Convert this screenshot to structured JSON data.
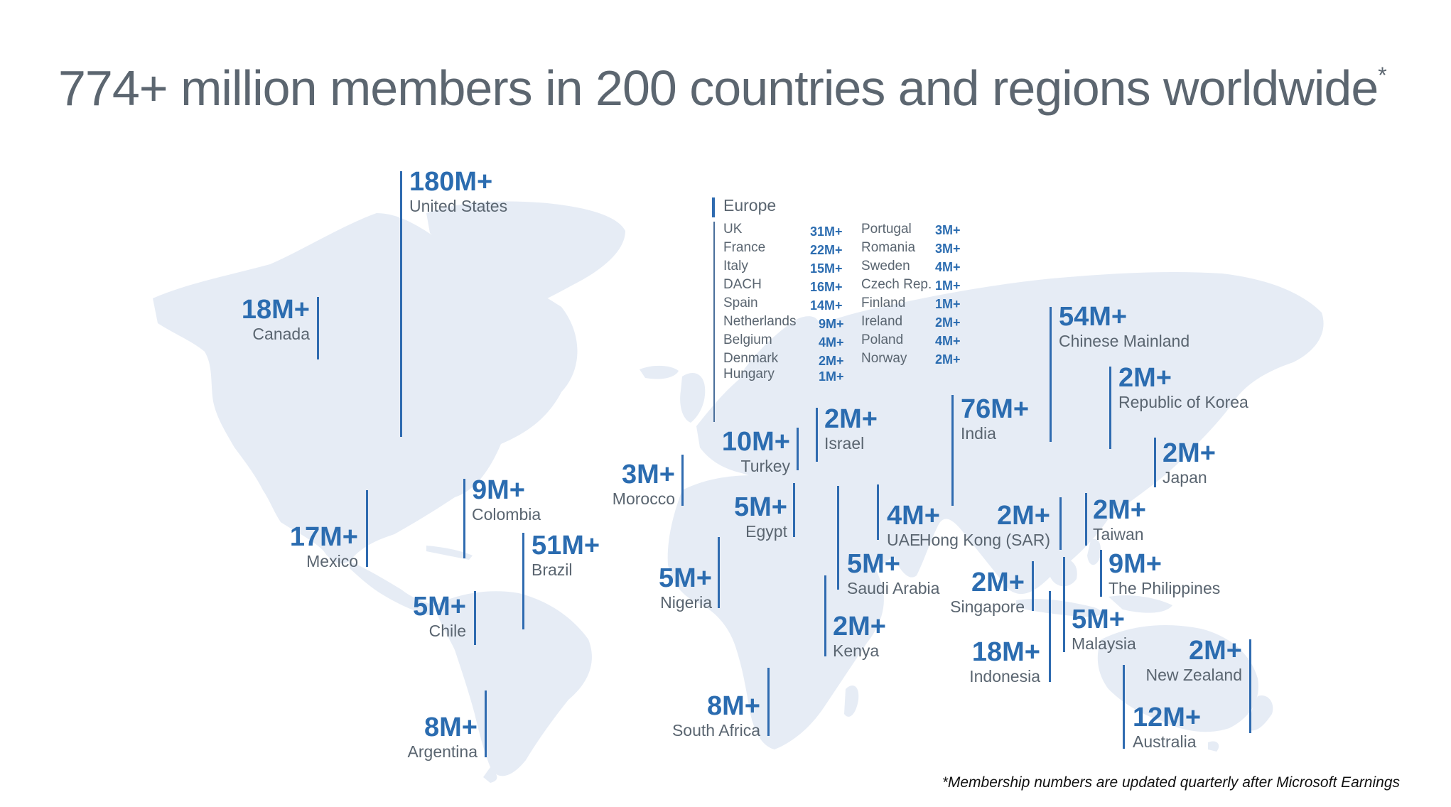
{
  "title": "774+ million members in 200 countries and regions worldwide",
  "title_mark": "*",
  "footnote": "*Membership numbers are updated quarterly after Microsoft Earnings",
  "colors": {
    "accent": "#2b6cb0",
    "land": "#e6ecf5",
    "label": "#5a6570",
    "title": "#5c6670"
  },
  "regions": {
    "united_states": {
      "value": "180M+",
      "label": "United States"
    },
    "canada": {
      "value": "18M+",
      "label": "Canada"
    },
    "mexico": {
      "value": "17M+",
      "label": "Mexico"
    },
    "colombia": {
      "value": "9M+",
      "label": "Colombia"
    },
    "brazil": {
      "value": "51M+",
      "label": "Brazil"
    },
    "chile": {
      "value": "5M+",
      "label": "Chile"
    },
    "argentina": {
      "value": "8M+",
      "label": "Argentina"
    },
    "morocco": {
      "value": "3M+",
      "label": "Morocco"
    },
    "turkey": {
      "value": "10M+",
      "label": "Turkey"
    },
    "israel": {
      "value": "2M+",
      "label": "Israel"
    },
    "egypt": {
      "value": "5M+",
      "label": "Egypt"
    },
    "nigeria": {
      "value": "5M+",
      "label": "Nigeria"
    },
    "saudi_arabia": {
      "value": "5M+",
      "label": "Saudi Arabia"
    },
    "uae": {
      "value": "4M+",
      "label": "UAE"
    },
    "kenya": {
      "value": "2M+",
      "label": "Kenya"
    },
    "south_africa": {
      "value": "8M+",
      "label": "South Africa"
    },
    "india": {
      "value": "76M+",
      "label": "India"
    },
    "chinese_mainland": {
      "value": "54M+",
      "label": "Chinese Mainland"
    },
    "korea": {
      "value": "2M+",
      "label": "Republic of Korea"
    },
    "japan": {
      "value": "2M+",
      "label": "Japan"
    },
    "hong_kong": {
      "value": "2M+",
      "label": "Hong Kong (SAR)"
    },
    "taiwan": {
      "value": "2M+",
      "label": "Taiwan"
    },
    "philippines": {
      "value": "9M+",
      "label": "The Philippines"
    },
    "singapore": {
      "value": "2M+",
      "label": "Singapore"
    },
    "malaysia": {
      "value": "5M+",
      "label": "Malaysia"
    },
    "indonesia": {
      "value": "18M+",
      "label": "Indonesia"
    },
    "new_zealand": {
      "value": "2M+",
      "label": "New Zealand"
    },
    "australia": {
      "value": "12M+",
      "label": "Australia"
    }
  },
  "europe": {
    "title": "Europe",
    "left": [
      {
        "name": "UK",
        "value": "31M+"
      },
      {
        "name": "France",
        "value": "22M+"
      },
      {
        "name": "Italy",
        "value": "15M+"
      },
      {
        "name": "DACH",
        "value": "16M+"
      },
      {
        "name": "Spain",
        "value": "14M+"
      },
      {
        "name": "Netherlands",
        "value": "9M+"
      },
      {
        "name": "Belgium",
        "value": "4M+"
      },
      {
        "name": "Denmark",
        "value": "2M+"
      },
      {
        "name": "Hungary",
        "value": "1M+"
      }
    ],
    "right": [
      {
        "name": "Portugal",
        "value": "3M+"
      },
      {
        "name": "Romania",
        "value": "3M+"
      },
      {
        "name": "Sweden",
        "value": "4M+"
      },
      {
        "name": "Czech Rep.",
        "value": "1M+"
      },
      {
        "name": "Finland",
        "value": "1M+"
      },
      {
        "name": "Ireland",
        "value": "2M+"
      },
      {
        "name": "Poland",
        "value": "4M+"
      },
      {
        "name": "Norway",
        "value": "2M+"
      }
    ]
  }
}
